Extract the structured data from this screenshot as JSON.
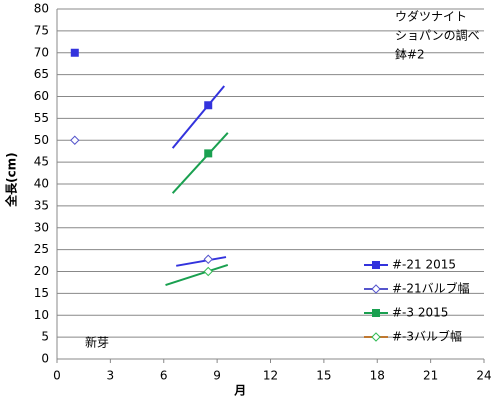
{
  "chart_data": {
    "type": "scatter",
    "x_label": "月",
    "y_label": "全長(cm)",
    "xlim": [
      0,
      24
    ],
    "xticks": [
      0,
      3,
      6,
      9,
      12,
      15,
      18,
      21,
      24
    ],
    "ylim": [
      0,
      80
    ],
    "yticks": [
      0,
      5,
      10,
      15,
      20,
      25,
      30,
      35,
      40,
      45,
      50,
      55,
      60,
      65,
      70,
      75,
      80
    ],
    "grid": true,
    "annotations": [
      [
        "ウダツナイト",
        "ショパンの調べ",
        "鉢#2"
      ],
      [
        "新芽"
      ]
    ],
    "series": [
      {
        "name": "#-21 2015",
        "color": "#3333dd",
        "marker": "square",
        "filled": true,
        "x": [
          1,
          8.5
        ],
        "values": [
          70,
          58
        ],
        "trendline": {
          "color": "#3333dd",
          "x": [
            6.5,
            9.4
          ],
          "values": [
            48.2,
            62.4
          ]
        }
      },
      {
        "name": "#-21バルブ幅",
        "color": "#5555cc",
        "marker": "diamond",
        "filled": false,
        "x": [
          1,
          8.5
        ],
        "values": [
          50,
          22.8
        ],
        "trendline": {
          "color": "#3333dd",
          "x": [
            6.7,
            9.5
          ],
          "values": [
            21.3,
            23.3
          ]
        }
      },
      {
        "name": "#-3 2015",
        "color": "#1aa050",
        "marker": "square",
        "filled": true,
        "x": [
          8.5
        ],
        "values": [
          47
        ],
        "trendline": {
          "color": "#1aa050",
          "x": [
            6.5,
            9.6
          ],
          "values": [
            37.9,
            51.7
          ]
        }
      },
      {
        "name": "#-3バルブ幅",
        "color": "#33bb55",
        "marker": "diamond",
        "filled": false,
        "x": [
          8.5
        ],
        "values": [
          20
        ],
        "trendline": {
          "color": "#1aa050",
          "x": [
            6.1,
            9.6
          ],
          "values": [
            16.9,
            21.5
          ]
        },
        "legend_line_color": "#c07830"
      }
    ]
  }
}
